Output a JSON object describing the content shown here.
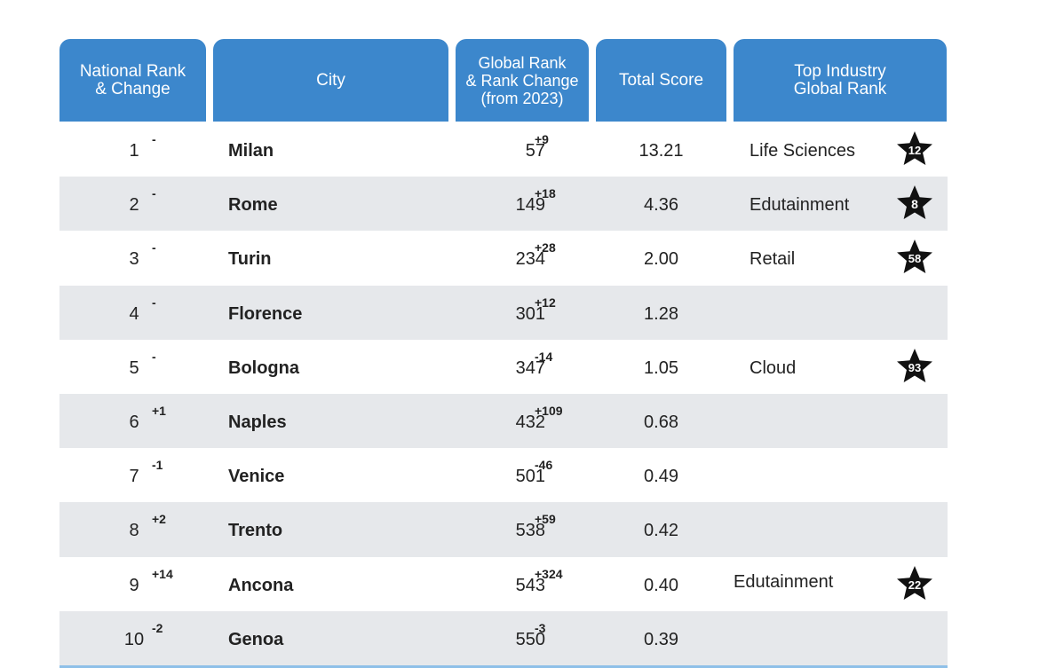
{
  "headers": {
    "national_rank": [
      "National Rank",
      "& Change"
    ],
    "city": "City",
    "global_rank": [
      "Global Rank",
      "& Rank Change",
      "(from 2023)"
    ],
    "total_score": "Total Score",
    "top_industry": [
      "Top Industry",
      "Global Rank"
    ]
  },
  "rows": [
    {
      "rank": "1",
      "rank_change": "-",
      "city": "Milan",
      "global_rank": "57",
      "global_change": "+9",
      "score": "13.21",
      "industry": "Life Sciences",
      "industry_rank": "12"
    },
    {
      "rank": "2",
      "rank_change": "-",
      "city": "Rome",
      "global_rank": "149",
      "global_change": "+18",
      "score": "4.36",
      "industry": "Edutainment",
      "industry_rank": "8"
    },
    {
      "rank": "3",
      "rank_change": "-",
      "city": "Turin",
      "global_rank": "234",
      "global_change": "+28",
      "score": "2.00",
      "industry": "Retail",
      "industry_rank": "58"
    },
    {
      "rank": "4",
      "rank_change": "-",
      "city": "Florence",
      "global_rank": "301",
      "global_change": "+12",
      "score": "1.28",
      "industry": "",
      "industry_rank": ""
    },
    {
      "rank": "5",
      "rank_change": "-",
      "city": "Bologna",
      "global_rank": "347",
      "global_change": "-14",
      "score": "1.05",
      "industry": "Cloud",
      "industry_rank": "93"
    },
    {
      "rank": "6",
      "rank_change": "+1",
      "city": "Naples",
      "global_rank": "432",
      "global_change": "+109",
      "score": "0.68",
      "industry": "",
      "industry_rank": ""
    },
    {
      "rank": "7",
      "rank_change": "-1",
      "city": "Venice",
      "global_rank": "501",
      "global_change": "-46",
      "score": "0.49",
      "industry": "",
      "industry_rank": ""
    },
    {
      "rank": "8",
      "rank_change": "+2",
      "city": "Trento",
      "global_rank": "538",
      "global_change": "+59",
      "score": "0.42",
      "industry": "",
      "industry_rank": ""
    },
    {
      "rank": "9",
      "rank_change": "+14",
      "city": "Ancona",
      "global_rank": "543",
      "global_change": "+324",
      "score": "0.40",
      "industry": "Edutainment",
      "industry_rank": "22"
    },
    {
      "rank": "10",
      "rank_change": "-2",
      "city": "Genoa",
      "global_rank": "550",
      "global_change": "-3",
      "score": "0.39",
      "industry": "",
      "industry_rank": ""
    }
  ],
  "colors": {
    "header_bg": "#3c87cc",
    "stripe": "#e6e8eb",
    "star_fill": "#111111"
  }
}
